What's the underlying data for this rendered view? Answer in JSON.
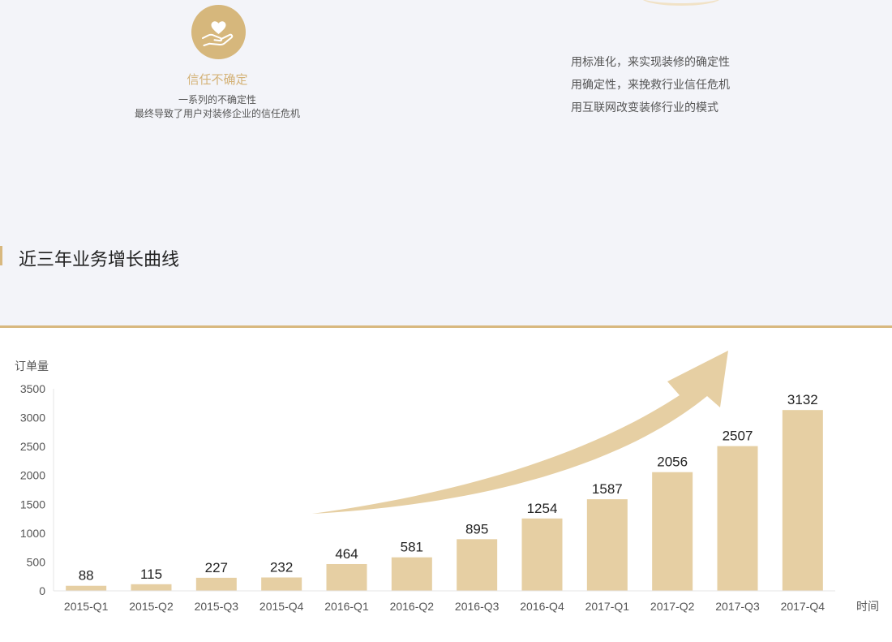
{
  "feature": {
    "icon": "heart-hand-icon",
    "title": "信任不确定",
    "lines": [
      "一系列的不确定性",
      "最终导致了用户对装修企业的信任危机"
    ]
  },
  "mission_lines": [
    "用标准化，来实现装修的确定性",
    "用确定性，来挽救行业信任危机",
    "用互联网改变装修行业的模式"
  ],
  "section_title": "近三年业务增长曲线",
  "colors": {
    "accent": "#d8b87f",
    "bar": "#e6cfa3",
    "icon_bg": "#d6b77c"
  },
  "chart_data": {
    "type": "bar",
    "title": "",
    "xlabel": "时间",
    "ylabel": "订单量",
    "categories": [
      "2015-Q1",
      "2015-Q2",
      "2015-Q3",
      "2015-Q4",
      "2016-Q1",
      "2016-Q2",
      "2016-Q3",
      "2016-Q4",
      "2017-Q1",
      "2017-Q2",
      "2017-Q3",
      "2017-Q4"
    ],
    "values": [
      88,
      115,
      227,
      232,
      464,
      581,
      895,
      1254,
      1587,
      2056,
      2507,
      3132
    ],
    "ylim": [
      0,
      3500
    ],
    "yticks": [
      0,
      500,
      1000,
      1500,
      2000,
      2500,
      3000,
      3500
    ],
    "grid": false,
    "data_labels": true,
    "annotation": "upward-trend-arrow"
  }
}
